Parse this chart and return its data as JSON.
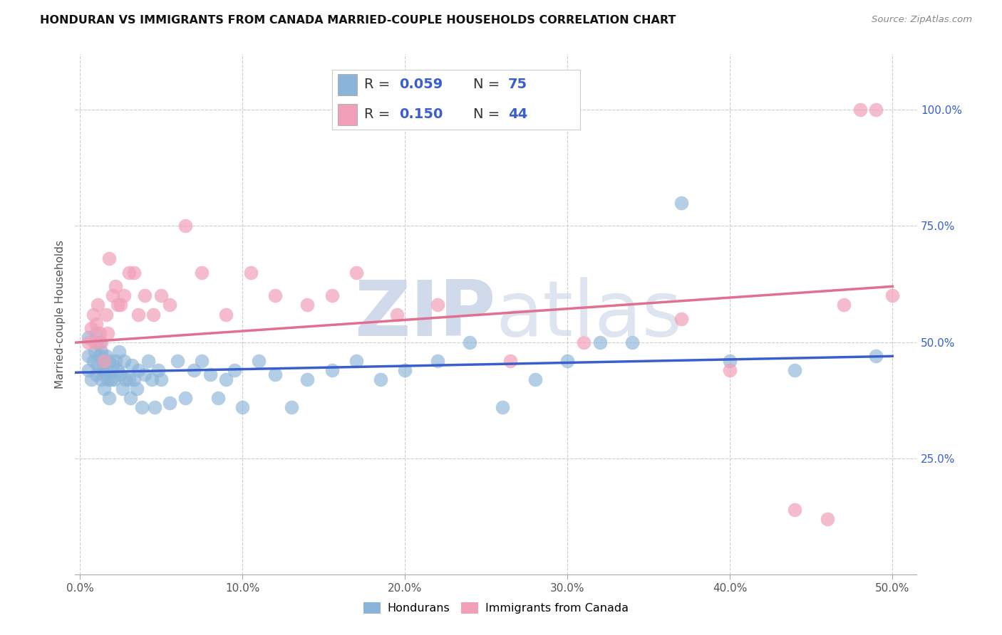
{
  "title": "HONDURAN VS IMMIGRANTS FROM CANADA MARRIED-COUPLE HOUSEHOLDS CORRELATION CHART",
  "source": "Source: ZipAtlas.com",
  "ylabel": "Married-couple Households",
  "ytick_values": [
    0.25,
    0.5,
    0.75,
    1.0
  ],
  "ytick_labels": [
    "25.0%",
    "50.0%",
    "75.0%",
    "100.0%"
  ],
  "xtick_values": [
    0.0,
    0.1,
    0.2,
    0.3,
    0.4,
    0.5
  ],
  "xtick_labels": [
    "0.0%",
    "10.0%",
    "20.0%",
    "30.0%",
    "40.0%",
    "50.0%"
  ],
  "xlim": [
    -0.003,
    0.515
  ],
  "ylim": [
    0.0,
    1.12
  ],
  "r1": 0.059,
  "n1": 75,
  "r2": 0.15,
  "n2": 44,
  "color_blue": "#8ab4d8",
  "color_pink": "#f2a0b8",
  "line_color_blue": "#3a5fcd",
  "line_color_pink": "#e07090",
  "blue_line_y0": 0.435,
  "blue_line_y1": 0.47,
  "pink_line_y0": 0.5,
  "pink_line_y1": 0.62,
  "blue_x": [
    0.005,
    0.005,
    0.005,
    0.007,
    0.008,
    0.009,
    0.01,
    0.01,
    0.01,
    0.011,
    0.012,
    0.012,
    0.013,
    0.013,
    0.014,
    0.015,
    0.015,
    0.015,
    0.016,
    0.016,
    0.017,
    0.018,
    0.018,
    0.019,
    0.02,
    0.021,
    0.022,
    0.023,
    0.024,
    0.025,
    0.026,
    0.027,
    0.028,
    0.03,
    0.031,
    0.032,
    0.033,
    0.035,
    0.036,
    0.038,
    0.04,
    0.042,
    0.044,
    0.046,
    0.048,
    0.05,
    0.055,
    0.06,
    0.065,
    0.07,
    0.075,
    0.08,
    0.085,
    0.09,
    0.095,
    0.1,
    0.11,
    0.12,
    0.13,
    0.14,
    0.155,
    0.17,
    0.185,
    0.2,
    0.22,
    0.24,
    0.26,
    0.28,
    0.3,
    0.32,
    0.34,
    0.37,
    0.4,
    0.44,
    0.49
  ],
  "blue_y": [
    0.44,
    0.47,
    0.51,
    0.42,
    0.46,
    0.48,
    0.5,
    0.43,
    0.52,
    0.45,
    0.47,
    0.5,
    0.42,
    0.48,
    0.44,
    0.4,
    0.43,
    0.46,
    0.44,
    0.47,
    0.42,
    0.38,
    0.46,
    0.42,
    0.45,
    0.42,
    0.46,
    0.44,
    0.48,
    0.43,
    0.4,
    0.46,
    0.42,
    0.42,
    0.38,
    0.45,
    0.42,
    0.4,
    0.44,
    0.36,
    0.43,
    0.46,
    0.42,
    0.36,
    0.44,
    0.42,
    0.37,
    0.46,
    0.38,
    0.44,
    0.46,
    0.43,
    0.38,
    0.42,
    0.44,
    0.36,
    0.46,
    0.43,
    0.36,
    0.42,
    0.44,
    0.46,
    0.42,
    0.44,
    0.46,
    0.5,
    0.36,
    0.42,
    0.46,
    0.5,
    0.5,
    0.8,
    0.46,
    0.44,
    0.47
  ],
  "pink_x": [
    0.005,
    0.007,
    0.008,
    0.009,
    0.01,
    0.011,
    0.012,
    0.013,
    0.015,
    0.016,
    0.017,
    0.018,
    0.02,
    0.022,
    0.023,
    0.025,
    0.027,
    0.03,
    0.033,
    0.036,
    0.04,
    0.045,
    0.05,
    0.055,
    0.065,
    0.075,
    0.09,
    0.105,
    0.12,
    0.14,
    0.155,
    0.17,
    0.195,
    0.22,
    0.265,
    0.31,
    0.37,
    0.4,
    0.44,
    0.46,
    0.47,
    0.48,
    0.49,
    0.5
  ],
  "pink_y": [
    0.5,
    0.53,
    0.56,
    0.5,
    0.54,
    0.58,
    0.52,
    0.5,
    0.46,
    0.56,
    0.52,
    0.68,
    0.6,
    0.62,
    0.58,
    0.58,
    0.6,
    0.65,
    0.65,
    0.56,
    0.6,
    0.56,
    0.6,
    0.58,
    0.75,
    0.65,
    0.56,
    0.65,
    0.6,
    0.58,
    0.6,
    0.65,
    0.56,
    0.58,
    0.46,
    0.5,
    0.55,
    0.44,
    0.14,
    0.12,
    0.58,
    1.0,
    1.0,
    0.6
  ]
}
